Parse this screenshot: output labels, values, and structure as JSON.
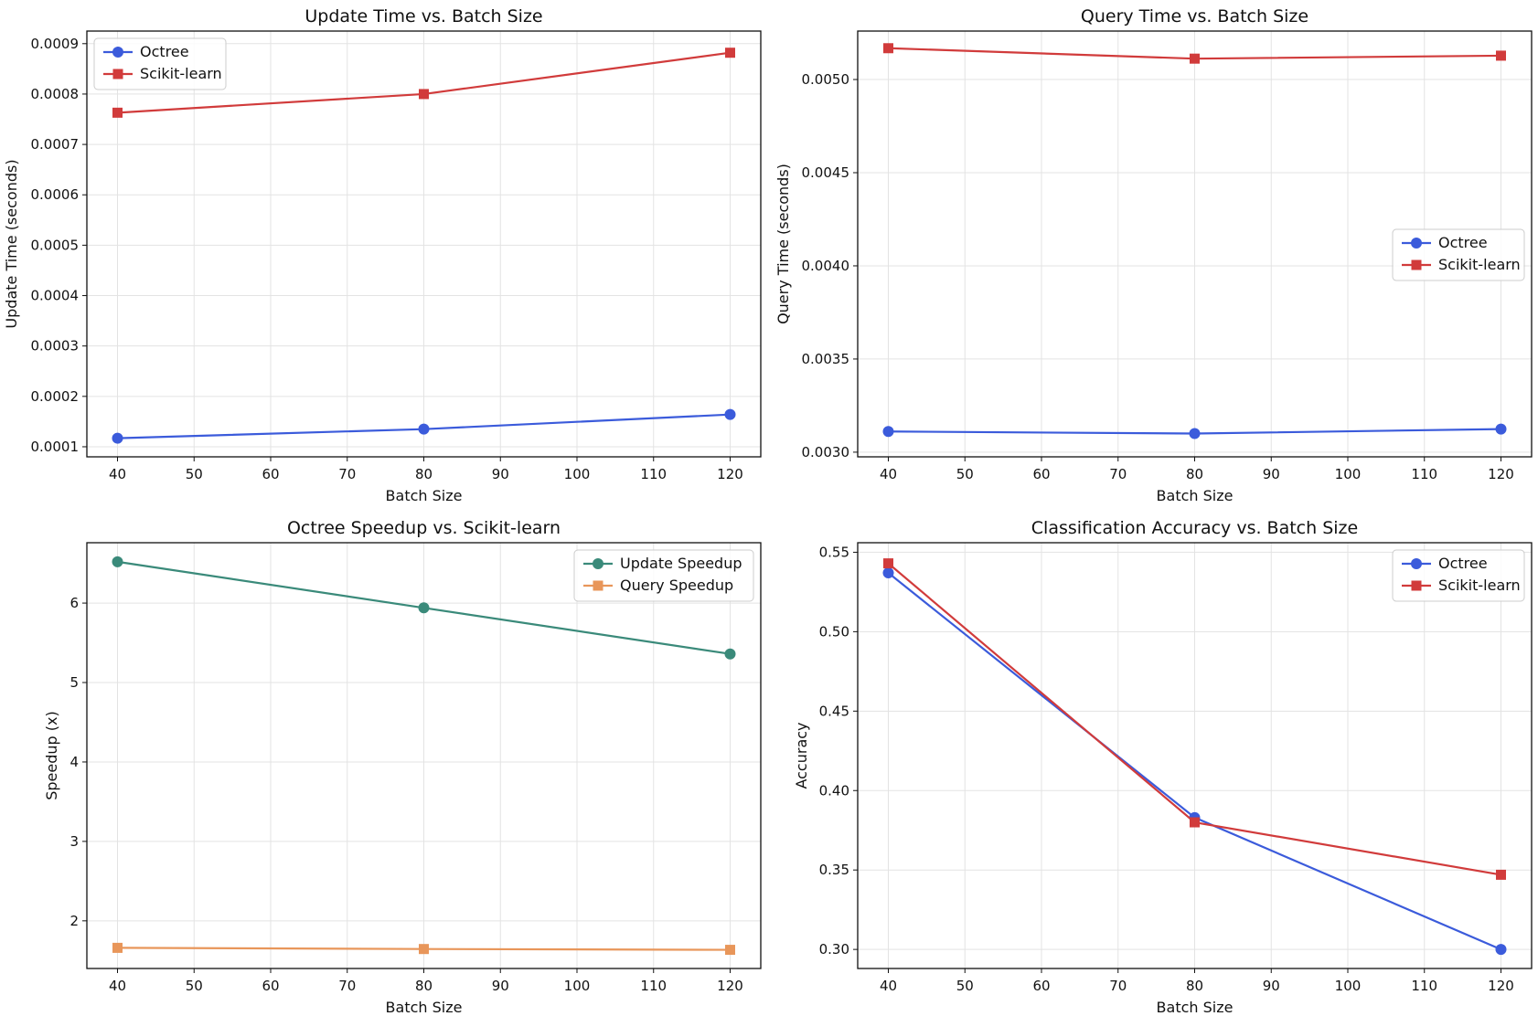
{
  "figure": {
    "colors": {
      "octree": "#3b5bdb",
      "sklearn": "#d13b3b",
      "update_speedup": "#3a8a7a",
      "query_speedup": "#e8965a",
      "grid": "#e3e3e3",
      "axes": "#111111"
    }
  },
  "chart_data": [
    {
      "type": "line",
      "title": "Update Time vs. Batch Size",
      "xlabel": "Batch Size",
      "ylabel": "Update Time (seconds)",
      "x": [
        40,
        80,
        120
      ],
      "xlim": [
        36,
        124
      ],
      "ylim": [
        8e-05,
        0.000925
      ],
      "xticks": [
        40,
        50,
        60,
        70,
        80,
        90,
        100,
        110,
        120
      ],
      "yticks": [
        0.0001,
        0.0002,
        0.0003,
        0.0004,
        0.0005,
        0.0006,
        0.0007,
        0.0008,
        0.0009
      ],
      "ytick_labels": [
        "0.0001",
        "0.0002",
        "0.0003",
        "0.0004",
        "0.0005",
        "0.0006",
        "0.0007",
        "0.0008",
        "0.0009"
      ],
      "legend_loc": "upper-left",
      "series": [
        {
          "name": "Octree",
          "values": [
            0.000117,
            0.000135,
            0.000164
          ],
          "color": "#3b5bdb",
          "marker": "circle"
        },
        {
          "name": "Scikit-learn",
          "values": [
            0.000763,
            0.0008,
            0.000882
          ],
          "color": "#d13b3b",
          "marker": "square"
        }
      ]
    },
    {
      "type": "line",
      "title": "Query Time vs. Batch Size",
      "xlabel": "Batch Size",
      "ylabel": "Query Time (seconds)",
      "x": [
        40,
        80,
        120
      ],
      "xlim": [
        36,
        124
      ],
      "ylim": [
        0.002975,
        0.00526
      ],
      "xticks": [
        40,
        50,
        60,
        70,
        80,
        90,
        100,
        110,
        120
      ],
      "yticks": [
        0.003,
        0.0035,
        0.004,
        0.0045,
        0.005
      ],
      "ytick_labels": [
        "0.0030",
        "0.0035",
        "0.0040",
        "0.0045",
        "0.0050"
      ],
      "legend_loc": "center-right",
      "series": [
        {
          "name": "Octree",
          "values": [
            0.003111,
            0.0031,
            0.003124
          ],
          "color": "#3b5bdb",
          "marker": "circle"
        },
        {
          "name": "Scikit-learn",
          "values": [
            0.005168,
            0.005112,
            0.005128
          ],
          "color": "#d13b3b",
          "marker": "square"
        }
      ]
    },
    {
      "type": "line",
      "title": "Octree Speedup vs. Scikit-learn",
      "xlabel": "Batch Size",
      "ylabel": "Speedup (x)",
      "x": [
        40,
        80,
        120
      ],
      "xlim": [
        36,
        124
      ],
      "ylim": [
        1.4,
        6.76
      ],
      "xticks": [
        40,
        50,
        60,
        70,
        80,
        90,
        100,
        110,
        120
      ],
      "yticks": [
        2,
        3,
        4,
        5,
        6
      ],
      "ytick_labels": [
        "2",
        "3",
        "4",
        "5",
        "6"
      ],
      "legend_loc": "upper-right",
      "series": [
        {
          "name": "Update Speedup",
          "values": [
            6.52,
            5.94,
            5.36
          ],
          "color": "#3a8a7a",
          "marker": "circle"
        },
        {
          "name": "Query Speedup",
          "values": [
            1.66,
            1.645,
            1.635
          ],
          "color": "#e8965a",
          "marker": "square"
        }
      ]
    },
    {
      "type": "line",
      "title": "Classification Accuracy vs. Batch Size",
      "xlabel": "Batch Size",
      "ylabel": "Accuracy",
      "x": [
        40,
        80,
        120
      ],
      "xlim": [
        36,
        124
      ],
      "ylim": [
        0.288,
        0.556
      ],
      "xticks": [
        40,
        50,
        60,
        70,
        80,
        90,
        100,
        110,
        120
      ],
      "yticks": [
        0.3,
        0.35,
        0.4,
        0.45,
        0.5,
        0.55
      ],
      "ytick_labels": [
        "0.30",
        "0.35",
        "0.40",
        "0.45",
        "0.50",
        "0.55"
      ],
      "legend_loc": "upper-right",
      "series": [
        {
          "name": "Octree",
          "values": [
            0.537,
            0.383,
            0.3
          ],
          "color": "#3b5bdb",
          "marker": "circle"
        },
        {
          "name": "Scikit-learn",
          "values": [
            0.543,
            0.38,
            0.347
          ],
          "color": "#d13b3b",
          "marker": "square"
        }
      ]
    }
  ]
}
